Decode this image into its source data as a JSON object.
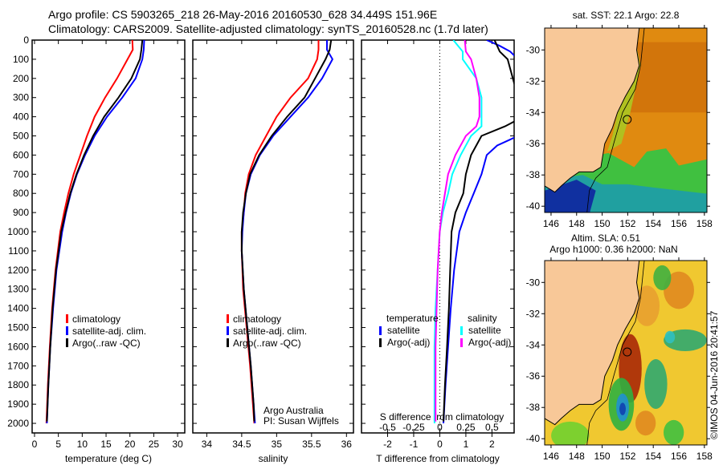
{
  "header": {
    "line1": "Argo profile: CS 5903265_218 26-May-2016 20160530_628 34.449S 151.96E",
    "line2": "Climatology: CARS2009. Satellite-adjusted climatology: synTS_20160528.nc (1.7d later)"
  },
  "chart_data": [
    {
      "type": "line",
      "id": "temp",
      "xlabel": "temperature (deg C)",
      "xlim": [
        -0.5,
        31.5
      ],
      "ylim": [
        2050,
        0
      ],
      "xticks": [
        0,
        5,
        10,
        15,
        20,
        25,
        30
      ],
      "yticks": [
        0,
        100,
        200,
        300,
        400,
        500,
        600,
        700,
        800,
        900,
        1000,
        1100,
        1200,
        1300,
        1400,
        1500,
        1600,
        1700,
        1800,
        1900,
        2000
      ],
      "legend": [
        "climatology",
        "satellite-adj. clim.",
        "Argo(..raw -QC)"
      ],
      "series": [
        {
          "name": "climatology",
          "color": "#ff0000",
          "depth": [
            0,
            50,
            100,
            200,
            300,
            400,
            500,
            600,
            700,
            800,
            900,
            1000,
            1200,
            1400,
            1600,
            1800,
            2000
          ],
          "values": [
            20.5,
            20.6,
            19.5,
            17.3,
            14.8,
            12.6,
            11,
            9.6,
            8.2,
            7.1,
            6.2,
            5.4,
            4.4,
            3.7,
            3.2,
            2.8,
            2.5
          ]
        },
        {
          "name": "satellite-adj. clim.",
          "color": "#0000ff",
          "depth": [
            0,
            50,
            100,
            200,
            300,
            400,
            500,
            600,
            700,
            800,
            900,
            1000,
            1200,
            1400,
            1600,
            1800,
            2000
          ],
          "values": [
            23,
            22.9,
            22.6,
            21.2,
            18.4,
            15.2,
            12.6,
            10.6,
            8.9,
            7.6,
            6.6,
            5.8,
            4.6,
            3.9,
            3.3,
            2.9,
            2.6
          ]
        },
        {
          "name": "Argo(..raw -QC)",
          "color": "#000000",
          "depth": [
            0,
            50,
            100,
            200,
            300,
            400,
            500,
            600,
            700,
            800,
            900,
            1000,
            1200,
            1400,
            1600,
            1800,
            1990
          ],
          "values": [
            22.6,
            22.4,
            22.1,
            20.3,
            17.6,
            14.6,
            12.3,
            10.4,
            8.8,
            7.5,
            6.5,
            5.6,
            4.5,
            3.8,
            3.3,
            2.9,
            2.6
          ]
        }
      ]
    },
    {
      "type": "line",
      "id": "sal",
      "xlabel": "salinity",
      "xlim": [
        33.8,
        36.1
      ],
      "ylim": [
        2050,
        0
      ],
      "xticks": [
        34,
        34.5,
        35,
        35.5,
        36
      ],
      "legend": [
        "climatology",
        "satellite-adj. clim.",
        "Argo(..raw -QC)"
      ],
      "annotation": [
        "Argo Australia",
        "PI: Susan Wijffels"
      ],
      "series": [
        {
          "name": "climatology",
          "color": "#ff0000",
          "depth": [
            0,
            50,
            100,
            200,
            300,
            400,
            500,
            600,
            700,
            800,
            900,
            1000,
            1100,
            1300,
            1500,
            1700,
            1900,
            2000
          ],
          "values": [
            35.6,
            35.6,
            35.58,
            35.45,
            35.2,
            35.0,
            34.85,
            34.7,
            34.6,
            34.55,
            34.53,
            34.5,
            34.5,
            34.52,
            34.57,
            34.62,
            34.66,
            34.68
          ]
        },
        {
          "name": "satellite-adj. clim.",
          "color": "#0000ff",
          "depth": [
            0,
            50,
            100,
            200,
            300,
            400,
            500,
            600,
            700,
            800,
            900,
            1000,
            1100,
            1300,
            1500,
            1700,
            1900,
            2000
          ],
          "values": [
            35.72,
            35.72,
            35.8,
            35.65,
            35.45,
            35.2,
            34.95,
            34.76,
            34.63,
            34.56,
            34.53,
            34.51,
            34.5,
            34.53,
            34.58,
            34.63,
            34.67,
            34.69
          ]
        },
        {
          "name": "Argo(..raw -QC)",
          "color": "#000000",
          "depth": [
            0,
            50,
            100,
            200,
            300,
            400,
            500,
            600,
            700,
            800,
            900,
            1000,
            1100,
            1300,
            1500,
            1700,
            1900,
            1990
          ],
          "values": [
            35.78,
            35.76,
            35.7,
            35.55,
            35.4,
            35.15,
            34.93,
            34.75,
            34.62,
            34.56,
            34.52,
            34.5,
            34.5,
            34.53,
            34.58,
            34.63,
            34.67,
            34.68
          ]
        }
      ]
    },
    {
      "type": "line",
      "id": "diff",
      "xlabel": "T difference from climatology",
      "xlabel2": "S difference from climatology",
      "xlim": [
        -3,
        2.85
      ],
      "ylim": [
        2050,
        0
      ],
      "xticks": [
        -2,
        -1,
        0,
        1,
        2
      ],
      "xticks2": [
        -0.5,
        -0.25,
        0,
        0.25,
        0.5
      ],
      "legend_title_t": "temperature",
      "legend_title_s": "salinity",
      "legend": [
        "satellite",
        "Argo(-adj)",
        "satellite",
        "Argo(-adj)"
      ],
      "series": [
        {
          "name": "T satellite",
          "color": "#0000ff",
          "scale": 1,
          "depth": [
            0,
            30,
            60,
            100,
            300,
            500,
            550,
            600,
            700,
            800,
            900,
            1000,
            1200,
            1400,
            1600,
            1800,
            2000
          ],
          "values": [
            1.8,
            2.3,
            2.7,
            3.0,
            3.5,
            3.0,
            2.2,
            1.8,
            1.6,
            1.3,
            1.0,
            0.75,
            0.55,
            0.42,
            0.32,
            0.22,
            0.14
          ]
        },
        {
          "name": "T Argo(-adj)",
          "color": "#000000",
          "scale": 1,
          "depth": [
            0,
            60,
            100,
            400,
            450,
            500,
            550,
            600,
            700,
            800,
            900,
            1000,
            1200,
            1400,
            1600,
            1800,
            1990
          ],
          "values": [
            2.1,
            2.3,
            2.6,
            3.2,
            2.5,
            1.6,
            1.4,
            1.2,
            1.0,
            0.9,
            0.6,
            0.45,
            0.4,
            0.35,
            0.28,
            0.2,
            0.14
          ]
        },
        {
          "name": "S satellite",
          "color": "#00ffff",
          "scale": 4,
          "depth": [
            0,
            60,
            100,
            200,
            300,
            400,
            450,
            500,
            600,
            700,
            800,
            900,
            1000,
            1200,
            1400,
            1600,
            1800,
            2000
          ],
          "values": [
            0.13,
            0.22,
            0.22,
            0.35,
            0.4,
            0.4,
            0.4,
            0.3,
            0.2,
            0.12,
            0.08,
            0.03,
            0,
            -0.02,
            -0.04,
            -0.05,
            -0.05,
            -0.05
          ]
        },
        {
          "name": "S Argo(-adj)",
          "color": "#ff00ff",
          "scale": 4,
          "depth": [
            0,
            60,
            100,
            200,
            300,
            400,
            450,
            500,
            600,
            700,
            800,
            900,
            1000,
            1200,
            1400,
            1600,
            1800,
            1990
          ],
          "values": [
            0.24,
            0.25,
            0.3,
            0.35,
            0.38,
            0.38,
            0.35,
            0.25,
            0.15,
            0.08,
            0.05,
            0.02,
            0,
            -0.02,
            -0.03,
            -0.04,
            -0.04,
            -0.04
          ]
        }
      ]
    },
    {
      "type": "heatmap",
      "id": "sst",
      "title": "sat. SST: 22.1  Argo: 22.8",
      "xlim": [
        145.5,
        158.2
      ],
      "ylim": [
        -40.4,
        -28.6
      ],
      "xticks": [
        146,
        148,
        150,
        152,
        154,
        156,
        158
      ],
      "yticks": [
        -30,
        -32,
        -34,
        -36,
        -38,
        -40
      ],
      "marker": [
        151.96,
        -34.449
      ]
    },
    {
      "type": "heatmap",
      "id": "sla",
      "title": "Altim. SLA: 0.51",
      "subtitle": "Argo h1000: 0.36 h2000: NaN",
      "xlim": [
        145.5,
        158.2
      ],
      "ylim": [
        -40.4,
        -28.6
      ],
      "xticks": [
        146,
        148,
        150,
        152,
        154,
        156,
        158
      ],
      "yticks": [
        -30,
        -32,
        -34,
        -36,
        -38,
        -40
      ],
      "marker": [
        151.96,
        -34.449
      ]
    }
  ],
  "footer": {
    "stamp": "©IMOS 04-Jun-2016 20:41:57"
  }
}
